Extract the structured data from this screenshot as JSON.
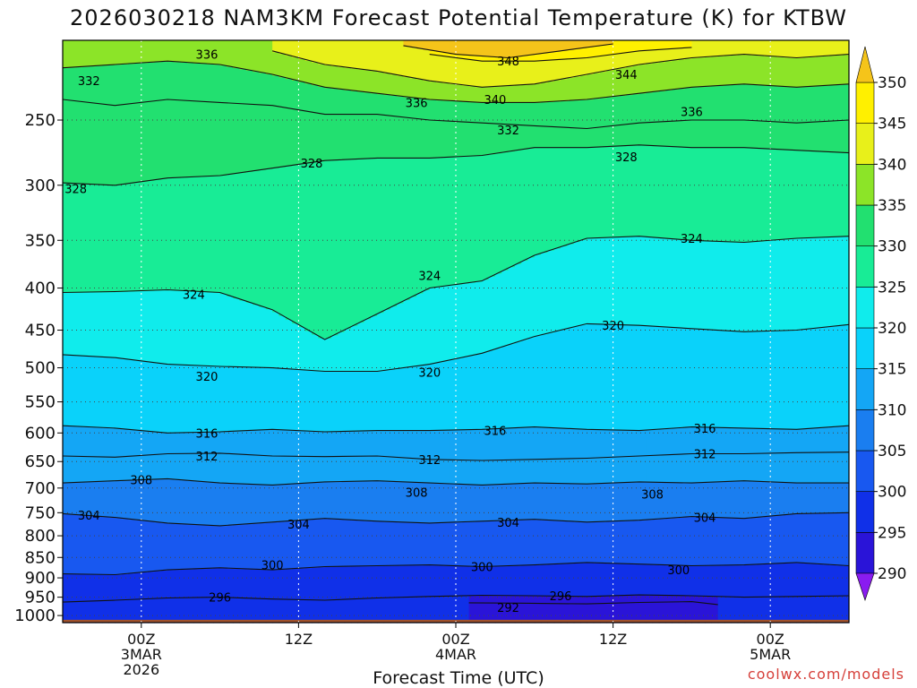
{
  "title": "2026030218 NAM3KM Forecast Potential Temperature (K) for KTBW",
  "credit": "coolwx.com/models",
  "chart_data": {
    "type": "heatmap",
    "title": "2026030218 NAM3KM Forecast Potential Temperature (K) for KTBW",
    "xlabel": "Forecast Time (UTC)",
    "ylabel": "",
    "x_ticks": [
      {
        "hour": 6,
        "lines": [
          "00Z",
          "3MAR",
          "2026"
        ]
      },
      {
        "hour": 18,
        "lines": [
          "12Z"
        ]
      },
      {
        "hour": 30,
        "lines": [
          "00Z",
          "4MAR"
        ]
      },
      {
        "hour": 42,
        "lines": [
          "12Z"
        ]
      },
      {
        "hour": 54,
        "lines": [
          "00Z",
          "5MAR"
        ]
      }
    ],
    "xlim": [
      0,
      60
    ],
    "y_ticks": [
      250,
      300,
      350,
      400,
      450,
      500,
      550,
      600,
      650,
      700,
      750,
      800,
      850,
      900,
      950,
      1000
    ],
    "ylim_hpa": [
      1020,
      200
    ],
    "yscale": "log",
    "colorbar": {
      "ticks": [
        290,
        295,
        300,
        305,
        310,
        315,
        320,
        325,
        330,
        335,
        340,
        345,
        350
      ],
      "colors": [
        "#8a1cf0",
        "#2a14d8",
        "#1030e8",
        "#1858f0",
        "#1a7ef0",
        "#14a6f5",
        "#0ad2fa",
        "#10ecec",
        "#18ec96",
        "#22e070",
        "#8ce428",
        "#e8f01a",
        "#fff000",
        "#f5c41a"
      ],
      "extend": "both"
    },
    "contours": [
      {
        "label": "292",
        "pts": [
          [
            31,
            965
          ],
          [
            35,
            966
          ],
          [
            40,
            968
          ],
          [
            44,
            964
          ],
          [
            48,
            962
          ],
          [
            50,
            970
          ]
        ]
      },
      {
        "label": "296",
        "pts": [
          [
            0,
            963
          ],
          [
            4,
            958
          ],
          [
            8,
            952
          ],
          [
            12,
            950
          ],
          [
            16,
            955
          ],
          [
            20,
            958
          ],
          [
            24,
            952
          ],
          [
            28,
            948
          ],
          [
            32,
            945
          ],
          [
            36,
            946
          ],
          [
            40,
            948
          ],
          [
            44,
            944
          ],
          [
            48,
            946
          ],
          [
            52,
            950
          ],
          [
            56,
            948
          ],
          [
            60,
            946
          ]
        ]
      },
      {
        "label": "300",
        "pts": [
          [
            0,
            890
          ],
          [
            4,
            892
          ],
          [
            8,
            880
          ],
          [
            12,
            875
          ],
          [
            16,
            880
          ],
          [
            20,
            872
          ],
          [
            24,
            870
          ],
          [
            28,
            868
          ],
          [
            32,
            872
          ],
          [
            36,
            868
          ],
          [
            40,
            862
          ],
          [
            44,
            866
          ],
          [
            48,
            870
          ],
          [
            52,
            868
          ],
          [
            56,
            862
          ],
          [
            60,
            870
          ]
        ]
      },
      {
        "label": "304",
        "pts": [
          [
            0,
            752
          ],
          [
            4,
            760
          ],
          [
            8,
            772
          ],
          [
            12,
            778
          ],
          [
            16,
            770
          ],
          [
            20,
            762
          ],
          [
            24,
            768
          ],
          [
            28,
            772
          ],
          [
            32,
            768
          ],
          [
            36,
            764
          ],
          [
            40,
            770
          ],
          [
            44,
            766
          ],
          [
            48,
            758
          ],
          [
            52,
            762
          ],
          [
            56,
            752
          ],
          [
            60,
            750
          ]
        ]
      },
      {
        "label": "308",
        "pts": [
          [
            0,
            690
          ],
          [
            4,
            686
          ],
          [
            8,
            682
          ],
          [
            12,
            690
          ],
          [
            16,
            694
          ],
          [
            20,
            688
          ],
          [
            24,
            686
          ],
          [
            28,
            690
          ],
          [
            32,
            694
          ],
          [
            36,
            690
          ],
          [
            40,
            692
          ],
          [
            44,
            688
          ],
          [
            48,
            690
          ],
          [
            52,
            686
          ],
          [
            56,
            690
          ],
          [
            60,
            690
          ]
        ]
      },
      {
        "label": "312",
        "pts": [
          [
            0,
            640
          ],
          [
            4,
            642
          ],
          [
            8,
            636
          ],
          [
            12,
            635
          ],
          [
            16,
            640
          ],
          [
            20,
            641
          ],
          [
            24,
            640
          ],
          [
            28,
            646
          ],
          [
            32,
            648
          ],
          [
            36,
            646
          ],
          [
            40,
            644
          ],
          [
            44,
            640
          ],
          [
            48,
            636
          ],
          [
            52,
            636
          ],
          [
            56,
            634
          ],
          [
            60,
            633
          ]
        ]
      },
      {
        "label": "316",
        "pts": [
          [
            0,
            588
          ],
          [
            4,
            592
          ],
          [
            8,
            600
          ],
          [
            12,
            598
          ],
          [
            16,
            594
          ],
          [
            20,
            598
          ],
          [
            24,
            596
          ],
          [
            28,
            596
          ],
          [
            32,
            594
          ],
          [
            36,
            590
          ],
          [
            40,
            594
          ],
          [
            44,
            596
          ],
          [
            48,
            590
          ],
          [
            52,
            592
          ],
          [
            56,
            594
          ],
          [
            60,
            588
          ]
        ]
      },
      {
        "label": "320",
        "pts": [
          [
            0,
            482
          ],
          [
            4,
            486
          ],
          [
            8,
            495
          ],
          [
            12,
            498
          ],
          [
            16,
            500
          ],
          [
            20,
            505
          ],
          [
            24,
            505
          ],
          [
            28,
            495
          ],
          [
            32,
            480
          ],
          [
            36,
            458
          ],
          [
            40,
            442
          ],
          [
            44,
            444
          ],
          [
            48,
            448
          ],
          [
            52,
            452
          ],
          [
            56,
            450
          ],
          [
            60,
            443
          ]
        ]
      },
      {
        "label": "324",
        "pts": [
          [
            0,
            405
          ],
          [
            4,
            404
          ],
          [
            8,
            402
          ],
          [
            12,
            405
          ],
          [
            16,
            425
          ],
          [
            20,
            462
          ],
          [
            24,
            430
          ],
          [
            28,
            400
          ],
          [
            32,
            392
          ],
          [
            36,
            365
          ],
          [
            40,
            348
          ],
          [
            44,
            346
          ],
          [
            48,
            350
          ],
          [
            52,
            352
          ],
          [
            56,
            348
          ],
          [
            60,
            346
          ]
        ]
      },
      {
        "label": "328",
        "pts": [
          [
            0,
            298
          ],
          [
            4,
            300
          ],
          [
            8,
            294
          ],
          [
            12,
            292
          ],
          [
            16,
            286
          ],
          [
            20,
            280
          ],
          [
            24,
            278
          ],
          [
            28,
            278
          ],
          [
            32,
            276
          ],
          [
            36,
            270
          ],
          [
            40,
            270
          ],
          [
            44,
            268
          ],
          [
            48,
            270
          ],
          [
            52,
            270
          ],
          [
            56,
            272
          ],
          [
            60,
            274
          ]
        ]
      },
      {
        "label": "332",
        "pts": [
          [
            0,
            236
          ],
          [
            4,
            240
          ],
          [
            8,
            236
          ],
          [
            12,
            238
          ],
          [
            16,
            240
          ],
          [
            20,
            246
          ],
          [
            24,
            246
          ],
          [
            28,
            250
          ],
          [
            32,
            252
          ],
          [
            36,
            254
          ],
          [
            40,
            256
          ],
          [
            44,
            252
          ],
          [
            48,
            250
          ],
          [
            52,
            250
          ],
          [
            56,
            252
          ],
          [
            60,
            250
          ]
        ]
      },
      {
        "label": "336",
        "pts": [
          [
            0,
            216
          ],
          [
            4,
            214
          ],
          [
            8,
            212
          ],
          [
            12,
            214
          ],
          [
            16,
            220
          ],
          [
            20,
            228
          ],
          [
            24,
            232
          ],
          [
            28,
            236
          ],
          [
            32,
            238
          ],
          [
            36,
            238
          ],
          [
            40,
            236
          ],
          [
            44,
            232
          ],
          [
            48,
            228
          ],
          [
            52,
            226
          ],
          [
            56,
            228
          ],
          [
            60,
            226
          ]
        ]
      },
      {
        "label": "340",
        "pts": [
          [
            16,
            206
          ],
          [
            20,
            214
          ],
          [
            24,
            218
          ],
          [
            28,
            224
          ],
          [
            32,
            228
          ],
          [
            36,
            226
          ],
          [
            40,
            220
          ],
          [
            44,
            214
          ],
          [
            48,
            210
          ],
          [
            52,
            208
          ],
          [
            56,
            210
          ],
          [
            60,
            208
          ]
        ]
      },
      {
        "label": "344",
        "pts": [
          [
            28,
            208
          ],
          [
            32,
            212
          ],
          [
            36,
            212
          ],
          [
            40,
            210
          ],
          [
            44,
            206
          ],
          [
            48,
            204
          ]
        ]
      },
      {
        "label": "348",
        "pts": [
          [
            26,
            203
          ],
          [
            30,
            208
          ],
          [
            34,
            210
          ],
          [
            38,
            206
          ],
          [
            42,
            202
          ]
        ]
      }
    ],
    "contour_labels": [
      {
        "text": "336",
        "hour": 11,
        "hpa": 208
      },
      {
        "text": "348",
        "hour": 34,
        "hpa": 212
      },
      {
        "text": "344",
        "hour": 43,
        "hpa": 220
      },
      {
        "text": "332",
        "hour": 2,
        "hpa": 224
      },
      {
        "text": "336",
        "hour": 27,
        "hpa": 238
      },
      {
        "text": "340",
        "hour": 33,
        "hpa": 236
      },
      {
        "text": "336",
        "hour": 48,
        "hpa": 244
      },
      {
        "text": "332",
        "hour": 34,
        "hpa": 257
      },
      {
        "text": "328",
        "hour": 19,
        "hpa": 282
      },
      {
        "text": "328",
        "hour": 43,
        "hpa": 277
      },
      {
        "text": "328",
        "hour": 1,
        "hpa": 303
      },
      {
        "text": "324",
        "hour": 48,
        "hpa": 348
      },
      {
        "text": "324",
        "hour": 28,
        "hpa": 386
      },
      {
        "text": "324",
        "hour": 10,
        "hpa": 407
      },
      {
        "text": "320",
        "hour": 42,
        "hpa": 444
      },
      {
        "text": "320",
        "hour": 11,
        "hpa": 512
      },
      {
        "text": "320",
        "hour": 28,
        "hpa": 506
      },
      {
        "text": "316",
        "hour": 11,
        "hpa": 600
      },
      {
        "text": "316",
        "hour": 33,
        "hpa": 596
      },
      {
        "text": "316",
        "hour": 49,
        "hpa": 592
      },
      {
        "text": "312",
        "hour": 11,
        "hpa": 640
      },
      {
        "text": "312",
        "hour": 28,
        "hpa": 646
      },
      {
        "text": "312",
        "hour": 49,
        "hpa": 636
      },
      {
        "text": "308",
        "hour": 6,
        "hpa": 684
      },
      {
        "text": "308",
        "hour": 27,
        "hpa": 708
      },
      {
        "text": "308",
        "hour": 45,
        "hpa": 712
      },
      {
        "text": "304",
        "hour": 2,
        "hpa": 755
      },
      {
        "text": "304",
        "hour": 18,
        "hpa": 774
      },
      {
        "text": "304",
        "hour": 34,
        "hpa": 770
      },
      {
        "text": "304",
        "hour": 49,
        "hpa": 760
      },
      {
        "text": "300",
        "hour": 16,
        "hpa": 868
      },
      {
        "text": "300",
        "hour": 32,
        "hpa": 872
      },
      {
        "text": "300",
        "hour": 47,
        "hpa": 880
      },
      {
        "text": "296",
        "hour": 12,
        "hpa": 950
      },
      {
        "text": "296",
        "hour": 38,
        "hpa": 946
      },
      {
        "text": "292",
        "hour": 34,
        "hpa": 978
      }
    ],
    "terrain_hpa": 1012
  }
}
